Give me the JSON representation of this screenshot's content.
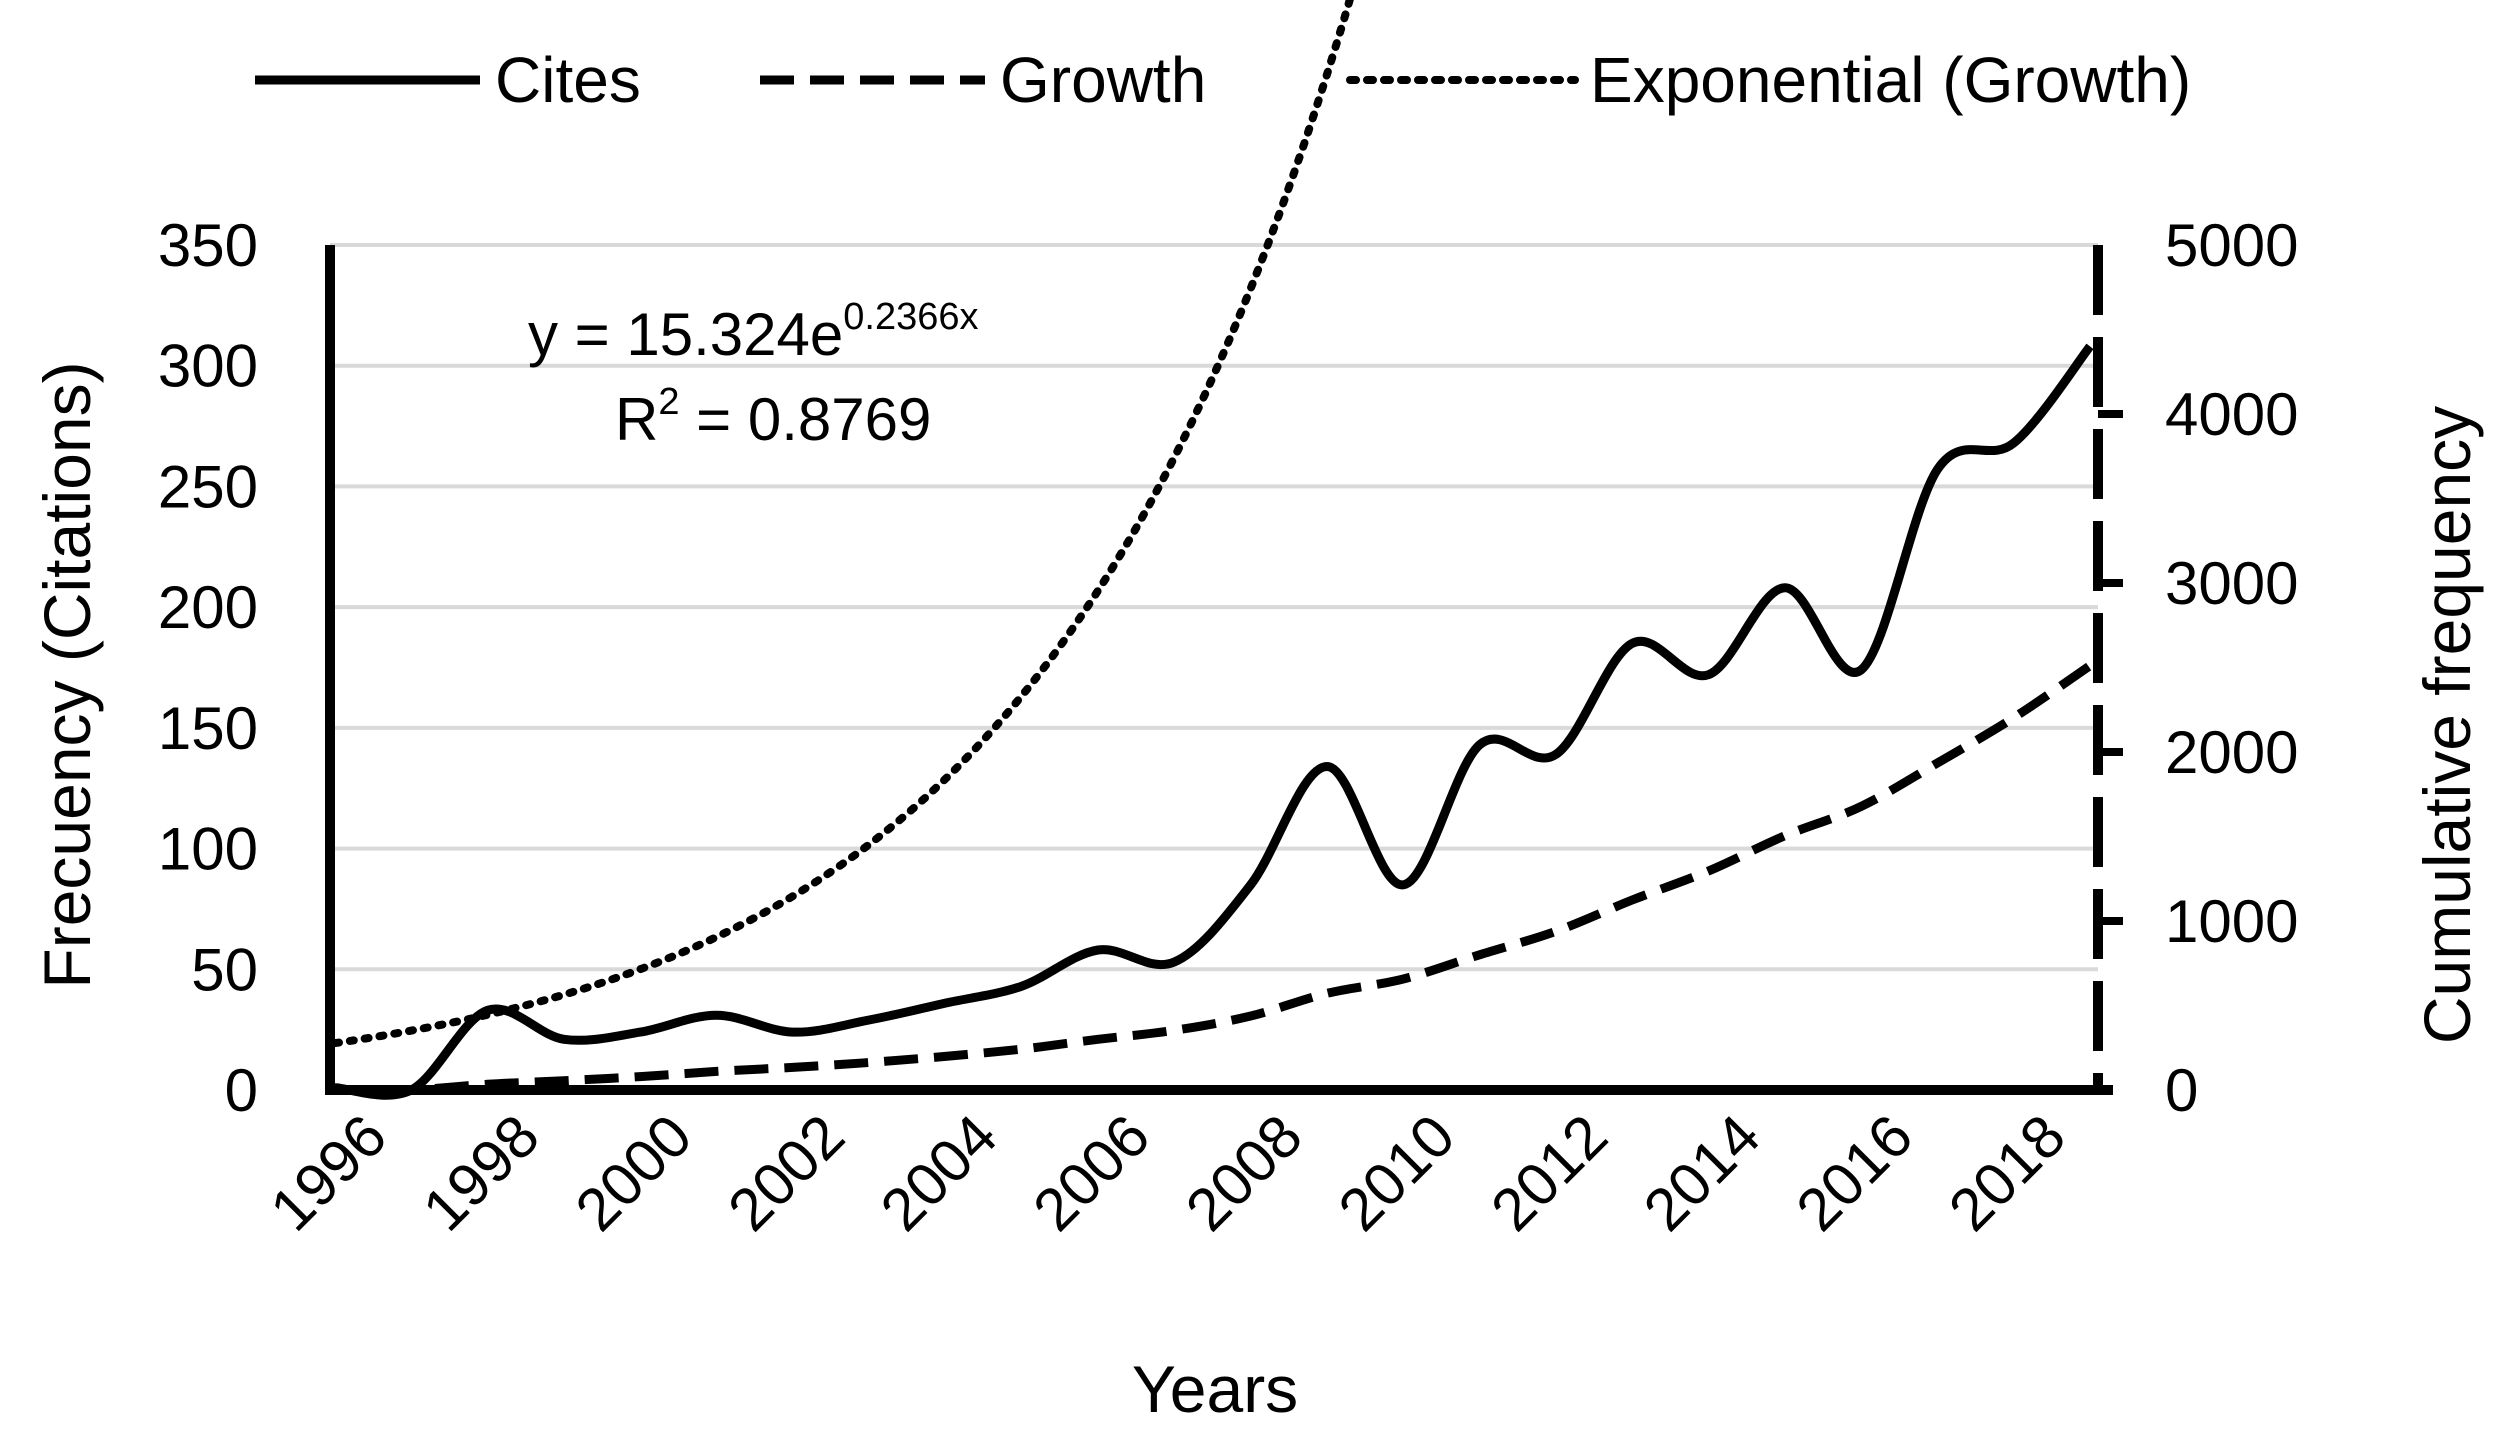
{
  "chart_data": {
    "type": "line",
    "title": "",
    "xlabel": "Years",
    "ylabel": "Frecuency (Citations)",
    "y2label": "Cumulative frequency",
    "x": [
      1996,
      1997,
      1998,
      1999,
      2000,
      2001,
      2002,
      2003,
      2004,
      2005,
      2006,
      2007,
      2008,
      2009,
      2010,
      2011,
      2012,
      2013,
      2014,
      2015,
      2016,
      2017,
      2018,
      2019
    ],
    "x_tick_labels": [
      "1996",
      "1998",
      "2000",
      "2002",
      "2004",
      "2006",
      "2008",
      "2010",
      "2012",
      "2014",
      "2016",
      "2018"
    ],
    "ylim": [
      0,
      350
    ],
    "y_ticks": [
      "0",
      "50",
      "100",
      "150",
      "200",
      "250",
      "300",
      "350"
    ],
    "y2lim": [
      0,
      5000
    ],
    "y2_ticks": [
      "0",
      "1000",
      "2000",
      "3000",
      "4000",
      "5000"
    ],
    "legend_position": "top",
    "gridlines": true,
    "series": [
      {
        "name": "Cites",
        "axis": "left",
        "style": "solid",
        "values": [
          1,
          0,
          33,
          21,
          24,
          31,
          24,
          29,
          36,
          43,
          58,
          53,
          85,
          134,
          85,
          143,
          139,
          185,
          172,
          208,
          174,
          257,
          268,
          308
        ]
      },
      {
        "name": "Growth",
        "axis": "right",
        "style": "dashed",
        "values": [
          1,
          1,
          34,
          55,
          79,
          110,
          134,
          163,
          199,
          242,
          300,
          353,
          438,
          572,
          657,
          800,
          939,
          1124,
          1296,
          1504,
          1678,
          1935,
          2203,
          2511
        ]
      },
      {
        "name": "Exponential (Growth)",
        "axis": "left",
        "style": "dotted",
        "fit": "exponential",
        "a": 15.324,
        "b": 0.2366
      }
    ],
    "annotation": {
      "eq_prefix": "y = 15.324e",
      "eq_exponent": "0.2366x",
      "r2_label": "R",
      "r2_exponent": "2",
      "r2_value": " = 0.8769"
    }
  }
}
